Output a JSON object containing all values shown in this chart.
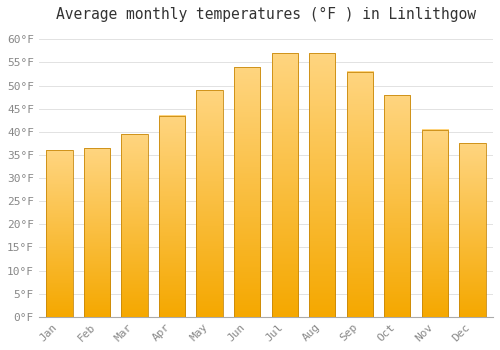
{
  "title": "Average monthly temperatures (°F ) in Linlithgow",
  "months": [
    "Jan",
    "Feb",
    "Mar",
    "Apr",
    "May",
    "Jun",
    "Jul",
    "Aug",
    "Sep",
    "Oct",
    "Nov",
    "Dec"
  ],
  "values": [
    36,
    36.5,
    39.5,
    43.5,
    49,
    54,
    57,
    57,
    53,
    48,
    40.5,
    37.5
  ],
  "bar_color_top": "#FFD580",
  "bar_color_bottom": "#F5A800",
  "bar_edge_color": "#C8880A",
  "ylim": [
    0,
    62
  ],
  "yticks": [
    0,
    5,
    10,
    15,
    20,
    25,
    30,
    35,
    40,
    45,
    50,
    55,
    60
  ],
  "ytick_labels": [
    "0°F",
    "5°F",
    "10°F",
    "15°F",
    "20°F",
    "25°F",
    "30°F",
    "35°F",
    "40°F",
    "45°F",
    "50°F",
    "55°F",
    "60°F"
  ],
  "background_color": "#FFFFFF",
  "grid_color": "#DDDDDD",
  "title_fontsize": 10.5,
  "tick_fontsize": 8,
  "bar_width": 0.7,
  "tick_color": "#888888"
}
